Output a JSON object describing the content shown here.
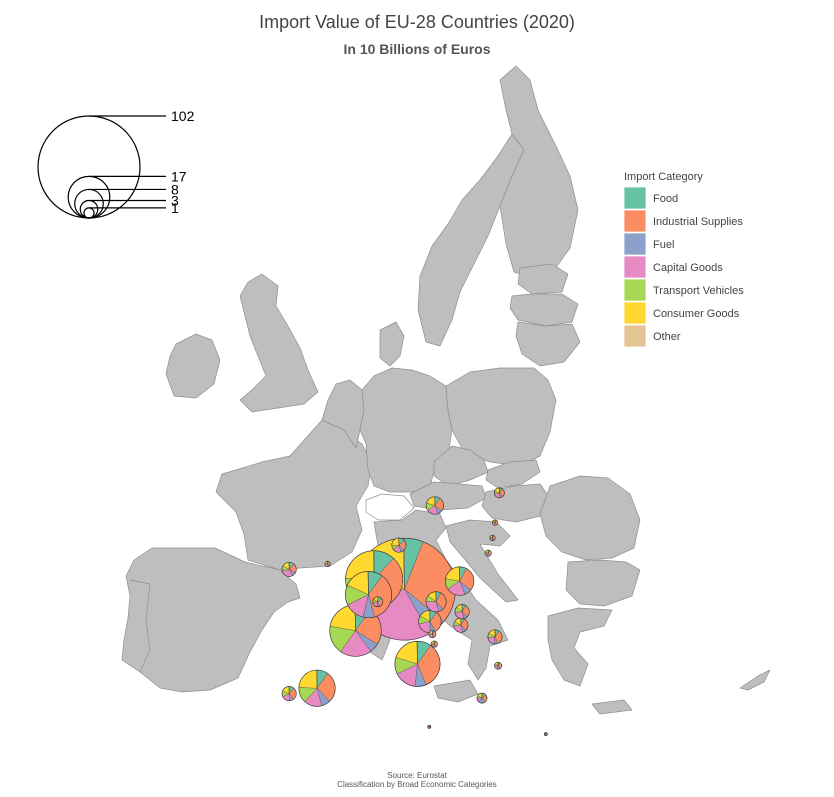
{
  "title": "Import Value of EU-28 Countries (2020)",
  "subtitle": "In 10 Billions of Euros",
  "caption": [
    "Source: Eurostat",
    "Classification by Broad Economic Categories"
  ],
  "size_legend": {
    "values": [
      102,
      17,
      8,
      3,
      1
    ],
    "labels": [
      "102",
      "17",
      "8",
      "3",
      "1"
    ]
  },
  "legend": {
    "title": "Import Category",
    "placement": "right",
    "items": [
      {
        "name": "Food",
        "color": "#66c2a5"
      },
      {
        "name": "Industrial Supplies",
        "color": "#fc8d62"
      },
      {
        "name": "Fuel",
        "color": "#8da0cb"
      },
      {
        "name": "Capital Goods",
        "color": "#e78ac3"
      },
      {
        "name": "Transport Vehicles",
        "color": "#a6d854"
      },
      {
        "name": "Consumer Goods",
        "color": "#ffd92f"
      },
      {
        "name": "Other",
        "color": "#e5c494"
      }
    ]
  },
  "chart_data": {
    "type": "pie-map",
    "colors": [
      "#66c2a5",
      "#fc8d62",
      "#8da0cb",
      "#e78ac3",
      "#a6d854",
      "#ffd92f",
      "#e5c494"
    ],
    "categories": [
      "Food",
      "Industrial Supplies",
      "Fuel",
      "Capital Goods",
      "Transport Vehicles",
      "Consumer Goods",
      "Other"
    ],
    "countries": [
      {
        "lon": 10.4,
        "lat": 51.2,
        "total": 102,
        "shares": [
          6,
          30,
          6,
          28,
          16,
          14,
          0.4
        ]
      },
      {
        "lon": 2.5,
        "lat": 46.6,
        "total": 26,
        "shares": [
          10,
          24,
          6,
          20,
          18,
          22,
          0.4
        ]
      },
      {
        "lon": 5.5,
        "lat": 52.3,
        "total": 32,
        "shares": [
          12,
          30,
          8,
          20,
          6,
          24,
          0.4
        ]
      },
      {
        "lon": 4.6,
        "lat": 50.6,
        "total": 21,
        "shares": [
          10,
          36,
          8,
          14,
          14,
          18,
          0.4
        ]
      },
      {
        "lon": 12.5,
        "lat": 42.9,
        "total": 20,
        "shares": [
          10,
          34,
          8,
          16,
          12,
          20,
          0.4
        ]
      },
      {
        "lon": -3.7,
        "lat": 40.2,
        "total": 13,
        "shares": [
          10,
          28,
          8,
          16,
          14,
          24,
          0.4
        ]
      },
      {
        "lon": 19.3,
        "lat": 52.1,
        "total": 8,
        "shares": [
          8,
          28,
          8,
          22,
          12,
          22,
          0.4
        ]
      },
      {
        "lon": 14.5,
        "lat": 47.6,
        "total": 5,
        "shares": [
          10,
          32,
          8,
          22,
          12,
          16,
          0.4
        ]
      },
      {
        "lon": 15.5,
        "lat": 49.8,
        "total": 4,
        "shares": [
          8,
          30,
          8,
          30,
          10,
          14,
          0.4
        ]
      },
      {
        "lon": 15.3,
        "lat": 60.5,
        "total": 3,
        "shares": [
          10,
          26,
          8,
          22,
          14,
          20,
          0.4
        ]
      },
      {
        "lon": 9.5,
        "lat": 56.1,
        "total": 2,
        "shares": [
          14,
          24,
          8,
          18,
          10,
          26,
          0.4
        ]
      },
      {
        "lon": 6.1,
        "lat": 49.8,
        "total": 1,
        "shares": [
          14,
          30,
          8,
          20,
          12,
          16,
          0.4
        ]
      },
      {
        "lon": -8.2,
        "lat": 53.4,
        "total": 2,
        "shares": [
          12,
          22,
          8,
          30,
          12,
          16,
          0.4
        ]
      },
      {
        "lon": 19.5,
        "lat": 47.2,
        "total": 2,
        "shares": [
          8,
          30,
          8,
          28,
          10,
          16,
          0.4
        ]
      },
      {
        "lon": 19.7,
        "lat": 48.7,
        "total": 2,
        "shares": [
          8,
          30,
          8,
          28,
          12,
          14,
          0.4
        ]
      },
      {
        "lon": 25.0,
        "lat": 45.9,
        "total": 2,
        "shares": [
          10,
          34,
          8,
          22,
          10,
          16,
          0.4
        ]
      },
      {
        "lon": -8.2,
        "lat": 39.6,
        "total": 2,
        "shares": [
          12,
          28,
          10,
          18,
          14,
          18,
          0.4
        ]
      },
      {
        "lon": 25.7,
        "lat": 61.9,
        "total": 1,
        "shares": [
          10,
          30,
          10,
          22,
          10,
          18,
          0.4
        ]
      },
      {
        "lon": 22.9,
        "lat": 39.1,
        "total": 1,
        "shares": [
          14,
          26,
          22,
          14,
          8,
          16,
          0.4
        ]
      },
      {
        "lon": -2.0,
        "lat": 54.0,
        "total": 0.3,
        "shares": [
          12,
          24,
          10,
          20,
          14,
          20,
          0.4
        ]
      },
      {
        "lon": 14.9,
        "lat": 46.2,
        "total": 0.5,
        "shares": [
          10,
          32,
          10,
          22,
          10,
          16,
          0.4
        ]
      },
      {
        "lon": 15.2,
        "lat": 45.1,
        "total": 0.4,
        "shares": [
          12,
          28,
          14,
          18,
          10,
          18,
          0.4
        ]
      },
      {
        "lon": 25.5,
        "lat": 42.7,
        "total": 0.5,
        "shares": [
          10,
          30,
          14,
          20,
          10,
          16,
          0.4
        ]
      },
      {
        "lon": 25.0,
        "lat": 58.6,
        "total": 0.3,
        "shares": [
          12,
          30,
          10,
          22,
          10,
          16,
          0.4
        ]
      },
      {
        "lon": 24.6,
        "lat": 56.9,
        "total": 0.3,
        "shares": [
          14,
          30,
          10,
          18,
          10,
          18,
          0.4
        ]
      },
      {
        "lon": 23.9,
        "lat": 55.2,
        "total": 0.4,
        "shares": [
          12,
          28,
          16,
          18,
          10,
          16,
          0.4
        ]
      },
      {
        "lon": 33.2,
        "lat": 35.1,
        "total": 0.1,
        "shares": [
          16,
          24,
          18,
          14,
          10,
          18,
          0.4
        ]
      },
      {
        "lon": 14.4,
        "lat": 35.9,
        "total": 0.1,
        "shares": [
          14,
          24,
          20,
          16,
          8,
          18,
          0.4
        ]
      }
    ]
  }
}
